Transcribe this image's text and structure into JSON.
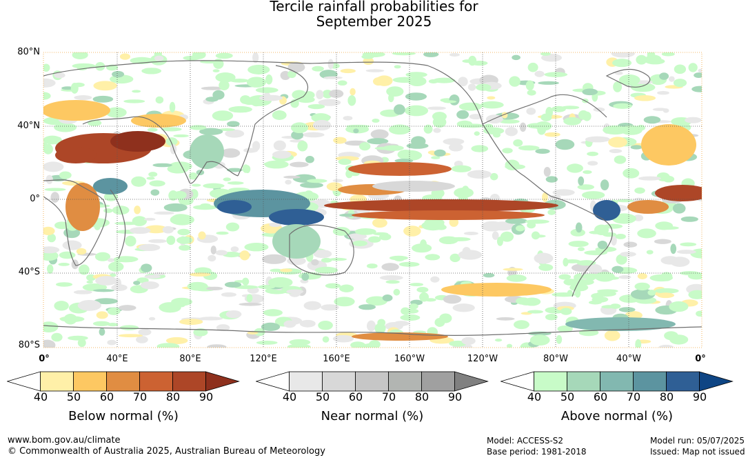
{
  "title": {
    "line1": "Tercile rainfall probabilities for",
    "line2": "September 2025"
  },
  "axes": {
    "lat_labels": [
      "80°N",
      "40°N",
      "0°",
      "40°S",
      "80°S"
    ],
    "lon_labels": [
      "0°",
      "40°E",
      "80°E",
      "120°E",
      "160°E",
      "160°W",
      "120°W",
      "80°W",
      "40°W",
      "0°"
    ]
  },
  "colorbars": [
    {
      "name": "below",
      "label": "Below normal (%)",
      "ticks": [
        "40",
        "50",
        "60",
        "70",
        "80",
        "90"
      ],
      "colors": [
        "#ffffff",
        "#fff0a8",
        "#fdc862",
        "#e08d42",
        "#cc6232",
        "#ad4627",
        "#8e301d"
      ]
    },
    {
      "name": "near",
      "label": "Near normal (%)",
      "ticks": [
        "40",
        "50",
        "60",
        "70",
        "80",
        "90"
      ],
      "colors": [
        "#ffffff",
        "#e8e8e8",
        "#d8d8d8",
        "#c6c6c6",
        "#b2b5b2",
        "#a0a0a0",
        "#808080"
      ]
    },
    {
      "name": "above",
      "label": "Above normal (%)",
      "ticks": [
        "40",
        "50",
        "60",
        "70",
        "80",
        "90"
      ],
      "colors": [
        "#ffffff",
        "#c8fbc8",
        "#a6d8b9",
        "#82b8b0",
        "#5c94a0",
        "#2f5f95",
        "#0e4584"
      ]
    }
  ],
  "footer": {
    "website": "www.bom.gov.au/climate",
    "copyright": "© Commonwealth of Australia 2025, Australian Bureau of Meteorology",
    "model": "Model: ACCESS-S2",
    "base_period": "Base period: 1981-2018",
    "model_run": "Model run: 05/07/2025",
    "issued": "Issued: Map not issued"
  }
}
